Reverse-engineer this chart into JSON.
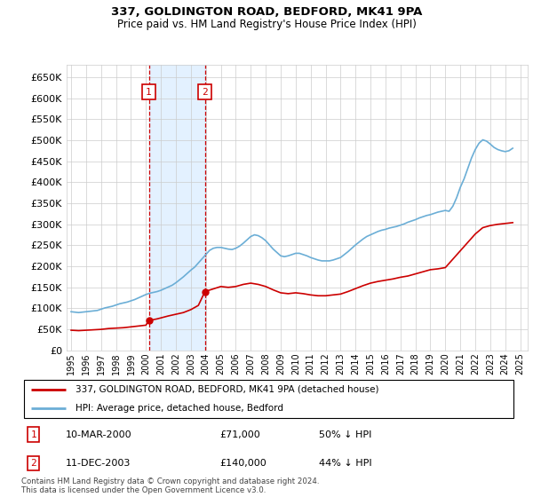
{
  "title1": "337, GOLDINGTON ROAD, BEDFORD, MK41 9PA",
  "title2": "Price paid vs. HM Land Registry's House Price Index (HPI)",
  "ylim": [
    0,
    680000
  ],
  "yticks": [
    0,
    50000,
    100000,
    150000,
    200000,
    250000,
    300000,
    350000,
    400000,
    450000,
    500000,
    550000,
    600000,
    650000
  ],
  "xlim_start": 1994.7,
  "xlim_end": 2025.5,
  "sale1_date": 2000.19,
  "sale1_price": 71000,
  "sale1_label": "1",
  "sale2_date": 2003.94,
  "sale2_price": 140000,
  "sale2_label": "2",
  "legend_line1": "337, GOLDINGTON ROAD, BEDFORD, MK41 9PA (detached house)",
  "legend_line2": "HPI: Average price, detached house, Bedford",
  "table_row1": [
    "1",
    "10-MAR-2000",
    "£71,000",
    "50% ↓ HPI"
  ],
  "table_row2": [
    "2",
    "11-DEC-2003",
    "£140,000",
    "44% ↓ HPI"
  ],
  "footnote": "Contains HM Land Registry data © Crown copyright and database right 2024.\nThis data is licensed under the Open Government Licence v3.0.",
  "hpi_color": "#6baed6",
  "price_color": "#cc0000",
  "shade_color": "#ddeeff",
  "grid_color": "#cccccc",
  "bg_color": "#ffffff",
  "hpi_data_x": [
    1995.0,
    1995.25,
    1995.5,
    1995.75,
    1996.0,
    1996.25,
    1996.5,
    1996.75,
    1997.0,
    1997.25,
    1997.5,
    1997.75,
    1998.0,
    1998.25,
    1998.5,
    1998.75,
    1999.0,
    1999.25,
    1999.5,
    1999.75,
    2000.0,
    2000.25,
    2000.5,
    2000.75,
    2001.0,
    2001.25,
    2001.5,
    2001.75,
    2002.0,
    2002.25,
    2002.5,
    2002.75,
    2003.0,
    2003.25,
    2003.5,
    2003.75,
    2004.0,
    2004.25,
    2004.5,
    2004.75,
    2005.0,
    2005.25,
    2005.5,
    2005.75,
    2006.0,
    2006.25,
    2006.5,
    2006.75,
    2007.0,
    2007.25,
    2007.5,
    2007.75,
    2008.0,
    2008.25,
    2008.5,
    2008.75,
    2009.0,
    2009.25,
    2009.5,
    2009.75,
    2010.0,
    2010.25,
    2010.5,
    2010.75,
    2011.0,
    2011.25,
    2011.5,
    2011.75,
    2012.0,
    2012.25,
    2012.5,
    2012.75,
    2013.0,
    2013.25,
    2013.5,
    2013.75,
    2014.0,
    2014.25,
    2014.5,
    2014.75,
    2015.0,
    2015.25,
    2015.5,
    2015.75,
    2016.0,
    2016.25,
    2016.5,
    2016.75,
    2017.0,
    2017.25,
    2017.5,
    2017.75,
    2018.0,
    2018.25,
    2018.5,
    2018.75,
    2019.0,
    2019.25,
    2019.5,
    2019.75,
    2020.0,
    2020.25,
    2020.5,
    2020.75,
    2021.0,
    2021.25,
    2021.5,
    2021.75,
    2022.0,
    2022.25,
    2022.5,
    2022.75,
    2023.0,
    2023.25,
    2023.5,
    2023.75,
    2024.0,
    2024.25,
    2024.5
  ],
  "hpi_data_y": [
    92000,
    91000,
    90000,
    91000,
    92000,
    93000,
    94000,
    95000,
    98000,
    101000,
    103000,
    105000,
    108000,
    111000,
    113000,
    115000,
    118000,
    121000,
    125000,
    129000,
    133000,
    136000,
    138000,
    140000,
    143000,
    147000,
    151000,
    155000,
    161000,
    168000,
    175000,
    183000,
    191000,
    198000,
    208000,
    218000,
    228000,
    238000,
    243000,
    245000,
    245000,
    243000,
    241000,
    240000,
    243000,
    248000,
    255000,
    263000,
    271000,
    275000,
    273000,
    268000,
    261000,
    251000,
    241000,
    233000,
    225000,
    223000,
    225000,
    228000,
    231000,
    231000,
    228000,
    225000,
    221000,
    218000,
    215000,
    213000,
    213000,
    213000,
    215000,
    218000,
    221000,
    228000,
    235000,
    243000,
    251000,
    258000,
    265000,
    271000,
    275000,
    279000,
    283000,
    286000,
    288000,
    291000,
    293000,
    295000,
    298000,
    301000,
    305000,
    308000,
    311000,
    315000,
    318000,
    321000,
    323000,
    326000,
    329000,
    331000,
    333000,
    331000,
    343000,
    363000,
    388000,
    408000,
    433000,
    458000,
    478000,
    493000,
    501000,
    498000,
    491000,
    483000,
    478000,
    475000,
    473000,
    475000,
    481000
  ],
  "price_data_x": [
    1995.0,
    1995.5,
    1996.0,
    1996.5,
    1997.0,
    1997.5,
    1998.0,
    1998.5,
    1999.0,
    1999.5,
    2000.0,
    2000.19,
    2000.75,
    2001.5,
    2002.5,
    2003.0,
    2003.5,
    2003.94,
    2005.0,
    2005.5,
    2006.0,
    2006.5,
    2007.0,
    2007.5,
    2008.0,
    2008.5,
    2009.0,
    2009.5,
    2010.0,
    2010.5,
    2011.0,
    2011.5,
    2012.0,
    2012.5,
    2013.0,
    2013.5,
    2014.0,
    2014.5,
    2015.0,
    2015.5,
    2016.0,
    2016.5,
    2017.0,
    2017.5,
    2018.0,
    2018.5,
    2019.0,
    2019.5,
    2020.0,
    2020.5,
    2021.0,
    2021.5,
    2022.0,
    2022.5,
    2023.0,
    2023.5,
    2024.0,
    2024.5
  ],
  "price_data_y": [
    48000,
    47000,
    48000,
    49000,
    50000,
    52000,
    53000,
    54000,
    56000,
    58000,
    60000,
    71000,
    75000,
    82000,
    90000,
    97000,
    107000,
    140000,
    152000,
    150000,
    152000,
    157000,
    160000,
    157000,
    152000,
    144000,
    137000,
    135000,
    137000,
    135000,
    132000,
    130000,
    130000,
    132000,
    134000,
    140000,
    147000,
    154000,
    160000,
    164000,
    167000,
    170000,
    174000,
    177000,
    182000,
    187000,
    192000,
    194000,
    197000,
    217000,
    237000,
    257000,
    277000,
    292000,
    297000,
    300000,
    302000,
    304000
  ]
}
